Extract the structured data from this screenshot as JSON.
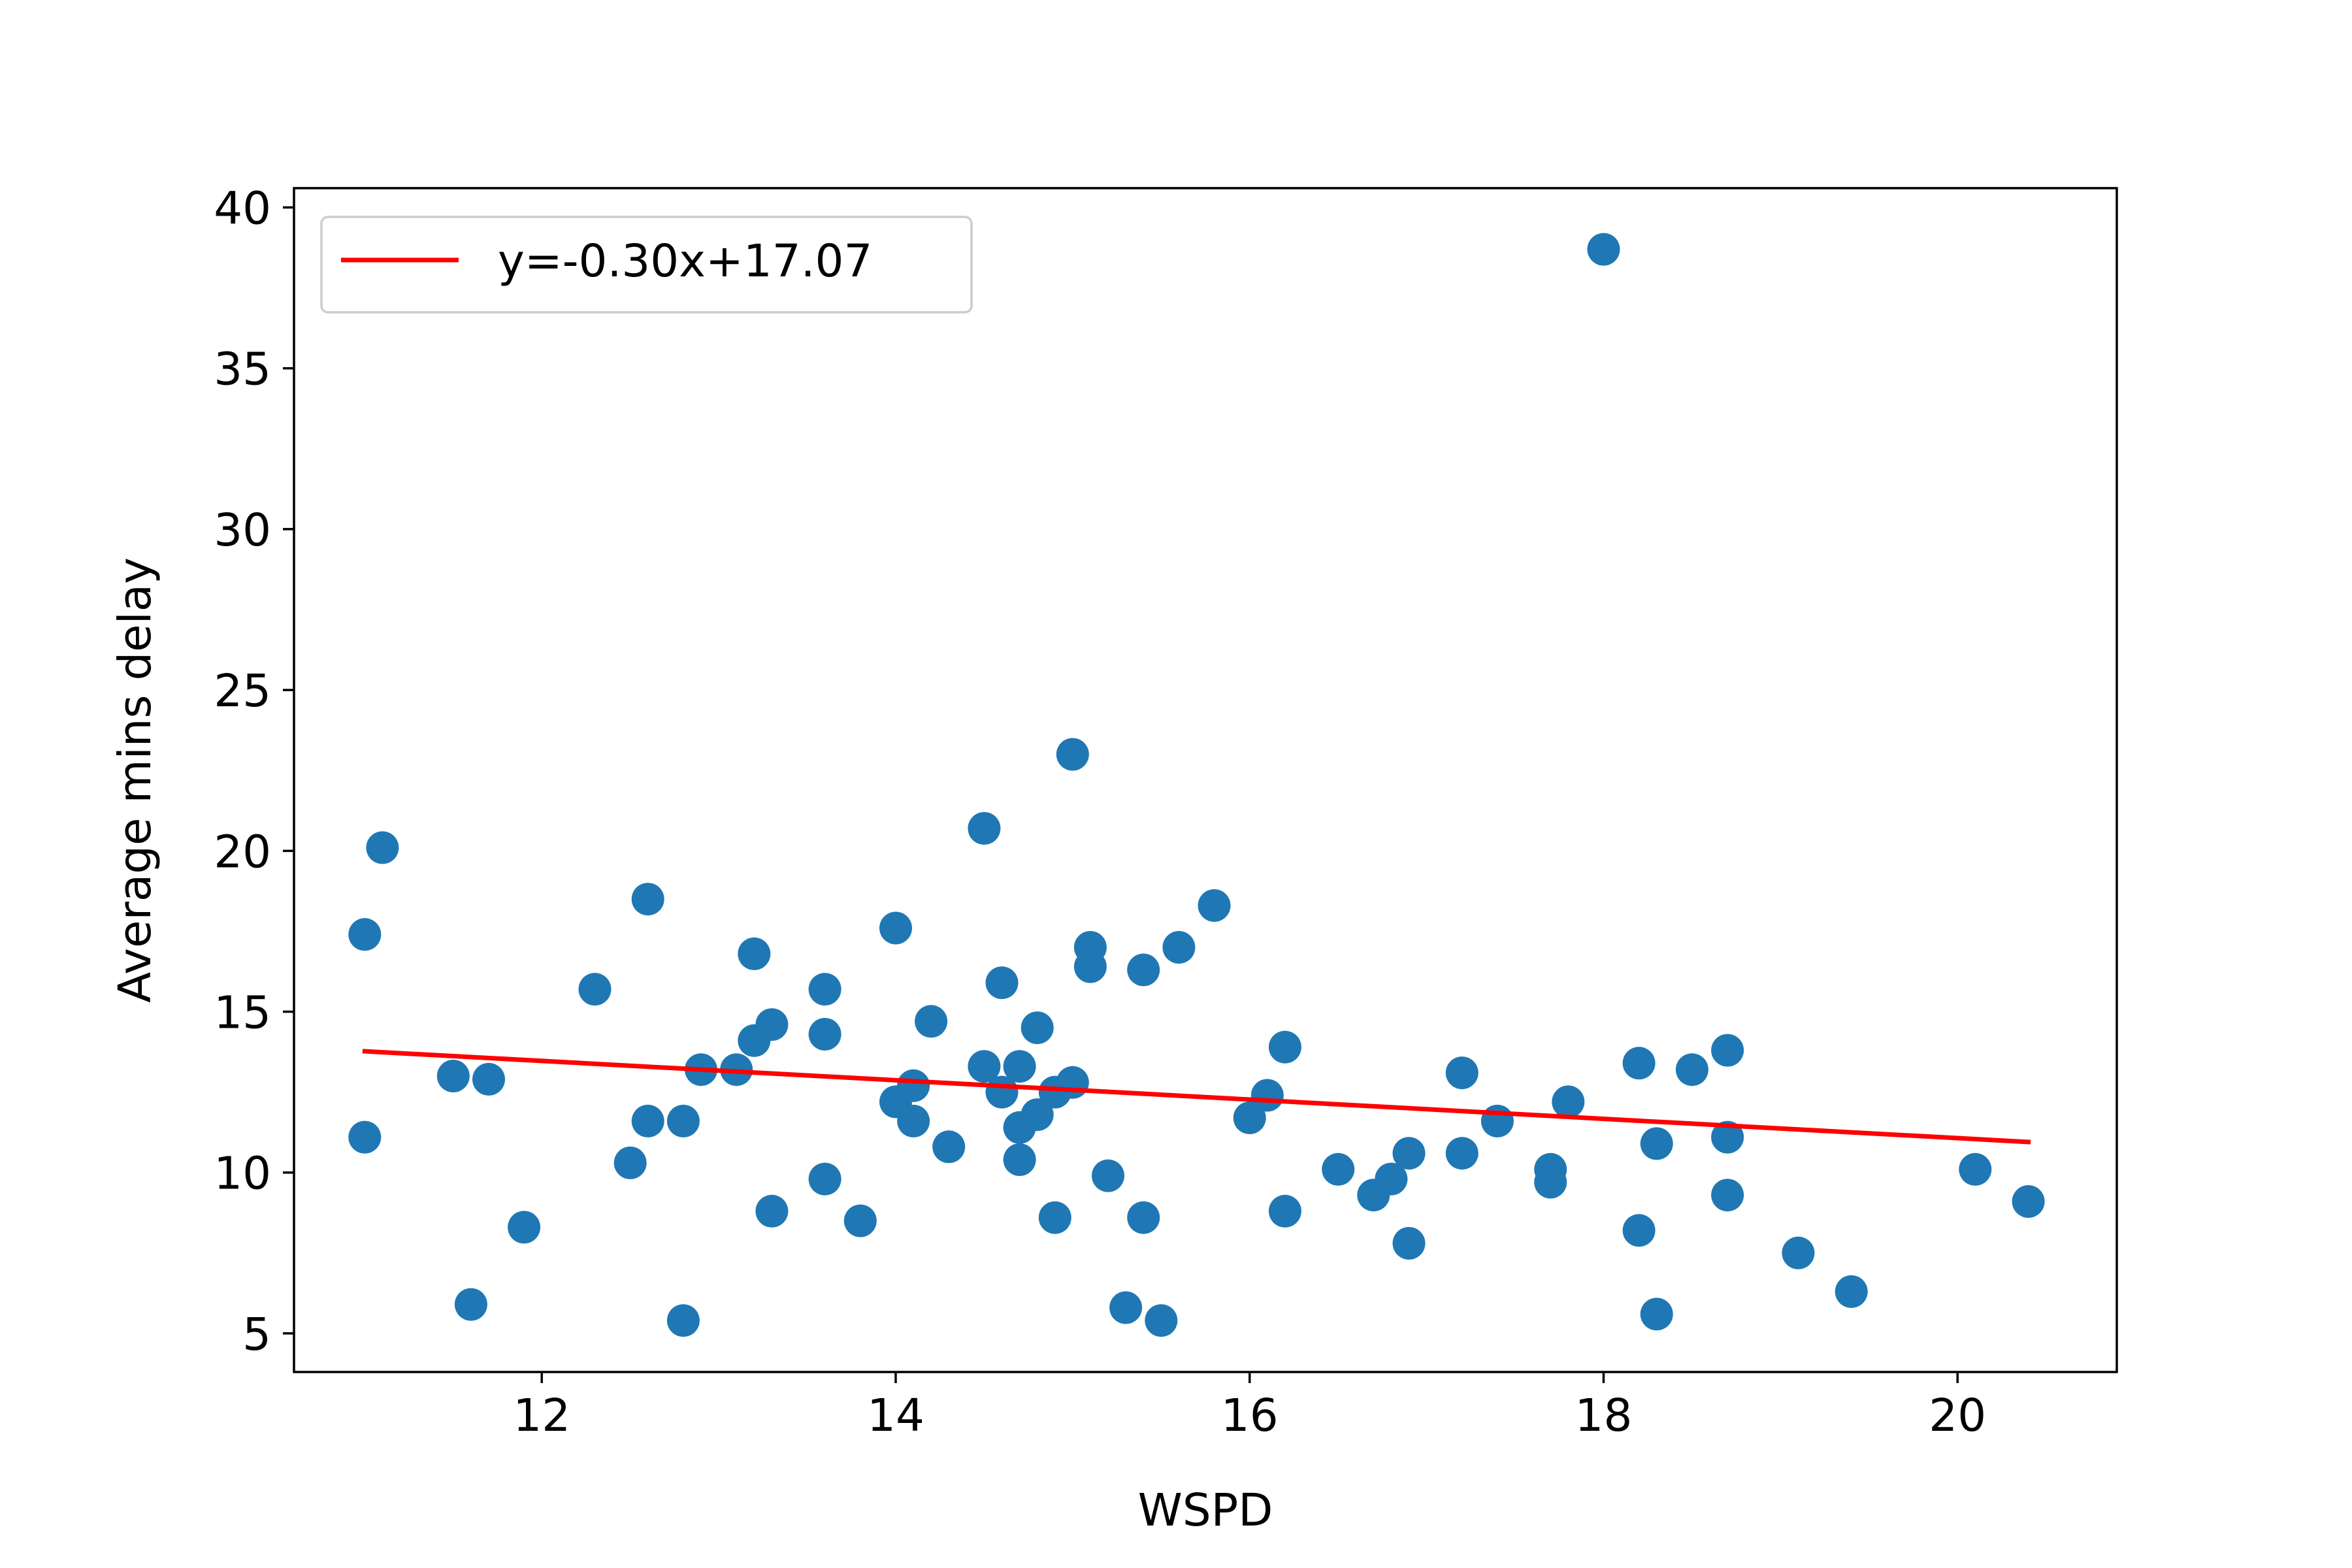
{
  "chart_data": {
    "type": "scatter",
    "title": "",
    "xlabel": "WSPD",
    "ylabel": "Average mins delay",
    "xlim": [
      10.6,
      20.9
    ],
    "ylim": [
      3.8,
      40.6
    ],
    "xticks": [
      12,
      14,
      16,
      18,
      20
    ],
    "yticks": [
      5,
      10,
      15,
      20,
      25,
      30,
      35,
      40
    ],
    "grid": false,
    "legend": {
      "location": "top-left",
      "entries": [
        {
          "label": "y=-0.30x+17.07",
          "color": "#ff0000",
          "kind": "line"
        }
      ]
    },
    "series": [
      {
        "kind": "scatter",
        "color": "#1f77b4",
        "points": [
          [
            11.0,
            17.4
          ],
          [
            11.0,
            11.1
          ],
          [
            11.1,
            20.1
          ],
          [
            11.5,
            13.0
          ],
          [
            11.6,
            5.9
          ],
          [
            11.7,
            12.9
          ],
          [
            11.9,
            8.3
          ],
          [
            12.3,
            15.7
          ],
          [
            12.5,
            10.3
          ],
          [
            12.6,
            18.5
          ],
          [
            12.6,
            11.6
          ],
          [
            12.8,
            11.6
          ],
          [
            12.8,
            5.4
          ],
          [
            12.9,
            13.2
          ],
          [
            13.1,
            13.2
          ],
          [
            13.2,
            16.8
          ],
          [
            13.2,
            14.1
          ],
          [
            13.3,
            14.6
          ],
          [
            13.3,
            8.8
          ],
          [
            13.6,
            15.7
          ],
          [
            13.6,
            14.3
          ],
          [
            13.6,
            9.8
          ],
          [
            13.8,
            8.5
          ],
          [
            14.0,
            17.6
          ],
          [
            14.0,
            12.2
          ],
          [
            14.1,
            12.7
          ],
          [
            14.1,
            11.6
          ],
          [
            14.2,
            14.7
          ],
          [
            14.3,
            10.8
          ],
          [
            14.5,
            20.7
          ],
          [
            14.5,
            13.3
          ],
          [
            14.6,
            15.9
          ],
          [
            14.6,
            12.5
          ],
          [
            14.7,
            13.3
          ],
          [
            14.7,
            11.4
          ],
          [
            14.7,
            10.4
          ],
          [
            14.8,
            14.5
          ],
          [
            14.8,
            11.8
          ],
          [
            14.9,
            12.5
          ],
          [
            14.9,
            8.6
          ],
          [
            15.0,
            23.0
          ],
          [
            15.0,
            12.8
          ],
          [
            15.1,
            17.0
          ],
          [
            15.1,
            16.4
          ],
          [
            15.2,
            9.9
          ],
          [
            15.3,
            5.8
          ],
          [
            15.4,
            16.3
          ],
          [
            15.4,
            8.6
          ],
          [
            15.5,
            5.4
          ],
          [
            15.6,
            17.0
          ],
          [
            15.8,
            18.3
          ],
          [
            16.0,
            11.7
          ],
          [
            16.1,
            12.4
          ],
          [
            16.2,
            13.9
          ],
          [
            16.2,
            8.8
          ],
          [
            16.5,
            10.1
          ],
          [
            16.7,
            9.3
          ],
          [
            16.8,
            9.8
          ],
          [
            16.9,
            10.6
          ],
          [
            16.9,
            7.8
          ],
          [
            17.2,
            13.1
          ],
          [
            17.2,
            10.6
          ],
          [
            17.4,
            11.6
          ],
          [
            17.7,
            10.1
          ],
          [
            17.7,
            9.7
          ],
          [
            17.8,
            12.2
          ],
          [
            18.0,
            38.7
          ],
          [
            18.2,
            13.4
          ],
          [
            18.2,
            8.2
          ],
          [
            18.3,
            10.9
          ],
          [
            18.3,
            5.6
          ],
          [
            18.5,
            13.2
          ],
          [
            18.7,
            13.8
          ],
          [
            18.7,
            11.1
          ],
          [
            18.7,
            9.3
          ],
          [
            19.1,
            7.5
          ],
          [
            19.4,
            6.3
          ],
          [
            20.1,
            10.1
          ],
          [
            20.4,
            9.1
          ]
        ]
      },
      {
        "kind": "line",
        "name": "y=-0.30x+17.07",
        "color": "#ff0000",
        "slope": -0.3,
        "intercept": 17.07,
        "x": [
          11.0,
          20.4
        ]
      }
    ]
  }
}
